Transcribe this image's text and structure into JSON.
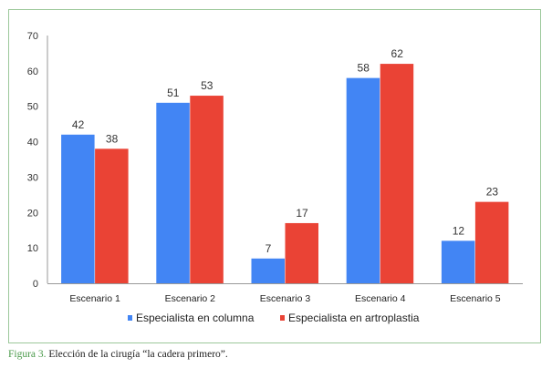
{
  "chart_data": {
    "type": "bar",
    "title": "",
    "xlabel": "",
    "ylabel": "",
    "ylim": [
      0,
      70
    ],
    "yticks": [
      0,
      10,
      20,
      30,
      40,
      50,
      60,
      70
    ],
    "grid": false,
    "legend_position": "bottom",
    "categories": [
      "Escenario 1",
      "Escenario 2",
      "Escenario 3",
      "Escenario 4",
      "Escenario 5"
    ],
    "series": [
      {
        "name": "Especialista en columna",
        "color": "#4285f4",
        "values": [
          42,
          51,
          7,
          58,
          12
        ]
      },
      {
        "name": "Especialista en artroplastia",
        "color": "#ea4335",
        "values": [
          38,
          53,
          17,
          62,
          23
        ]
      }
    ]
  },
  "caption": {
    "label": "Figura 3.",
    "text": " Elección de la cirugía “la cadera primero”."
  }
}
